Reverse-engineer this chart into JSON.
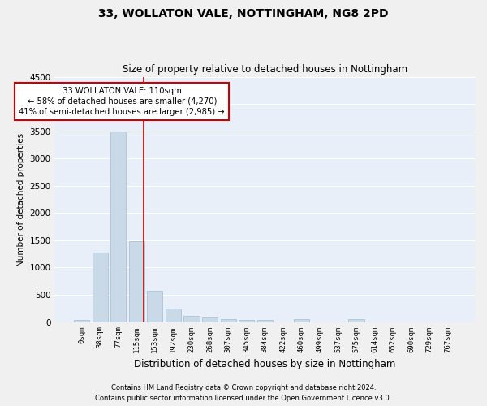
{
  "title": "33, WOLLATON VALE, NOTTINGHAM, NG8 2PD",
  "subtitle": "Size of property relative to detached houses in Nottingham",
  "xlabel": "Distribution of detached houses by size in Nottingham",
  "ylabel": "Number of detached properties",
  "bar_color": "#c9d9e8",
  "bar_edgecolor": "#a0bcd4",
  "bg_color": "#e8eff8",
  "grid_color": "#ffffff",
  "annotation_box_color": "#cc0000",
  "vline_color": "#cc0000",
  "annotation_text": "  33 WOLLATON VALE: 110sqm  \n← 58% of detached houses are smaller (4,270)\n41% of semi-detached houses are larger (2,985) →",
  "categories": [
    "0sqm",
    "38sqm",
    "77sqm",
    "115sqm",
    "153sqm",
    "192sqm",
    "230sqm",
    "268sqm",
    "307sqm",
    "345sqm",
    "384sqm",
    "422sqm",
    "460sqm",
    "499sqm",
    "537sqm",
    "575sqm",
    "614sqm",
    "652sqm",
    "690sqm",
    "729sqm",
    "767sqm"
  ],
  "values": [
    40,
    1280,
    3500,
    1480,
    580,
    240,
    115,
    80,
    55,
    45,
    45,
    0,
    50,
    0,
    0,
    55,
    0,
    0,
    0,
    0,
    0
  ],
  "ylim": [
    0,
    4500
  ],
  "yticks": [
    0,
    500,
    1000,
    1500,
    2000,
    2500,
    3000,
    3500,
    4000,
    4500
  ],
  "footer1": "Contains HM Land Registry data © Crown copyright and database right 2024.",
  "footer2": "Contains public sector information licensed under the Open Government Licence v3.0.",
  "figsize": [
    6.0,
    5.0
  ],
  "dpi": 100
}
